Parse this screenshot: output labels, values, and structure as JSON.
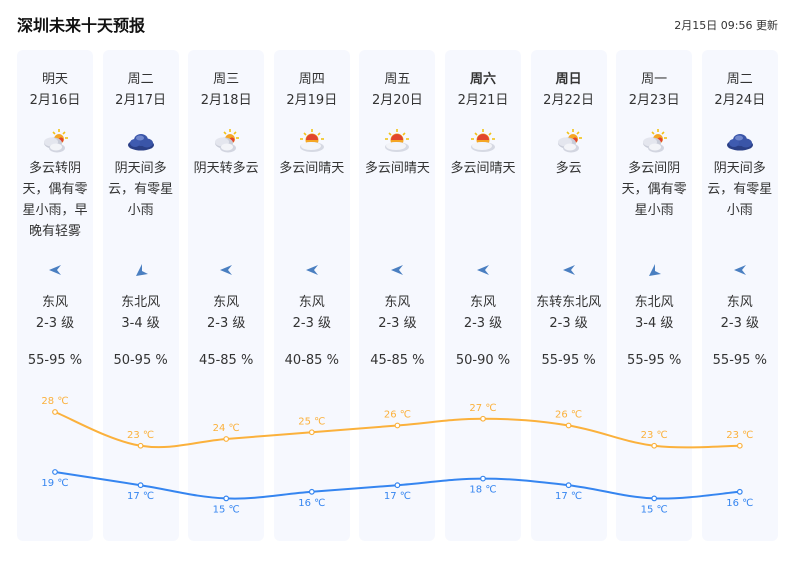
{
  "header": {
    "title": "深圳未来十天预报",
    "updated": "2月15日 09:56 更新"
  },
  "days": [
    {
      "week": "明天",
      "date": "2月16日",
      "icon": "partly-cloudy-icon",
      "desc": "多云转阴天，偶有零星小雨，早晚有轻雾",
      "wind_dir_icon": "wind-east-arrow-icon",
      "wind": "东风",
      "level": "2-3 级",
      "humidity": "55-95 %",
      "bold": false
    },
    {
      "week": "周二",
      "date": "2月17日",
      "icon": "overcast-cloud-icon",
      "desc": "阴天间多云，有零星小雨",
      "wind_dir_icon": "wind-northeast-arrow-icon",
      "wind": "东北风",
      "level": "3-4 级",
      "humidity": "50-95 %",
      "bold": false
    },
    {
      "week": "周三",
      "date": "2月18日",
      "icon": "partly-cloudy-icon",
      "desc": "阴天转多云",
      "wind_dir_icon": "wind-east-arrow-icon",
      "wind": "东风",
      "level": "2-3 级",
      "humidity": "45-85 %",
      "bold": false
    },
    {
      "week": "周四",
      "date": "2月19日",
      "icon": "sun-behind-cloud-icon",
      "desc": "多云间晴天",
      "wind_dir_icon": "wind-east-arrow-icon",
      "wind": "东风",
      "level": "2-3 级",
      "humidity": "40-85 %",
      "bold": false
    },
    {
      "week": "周五",
      "date": "2月20日",
      "icon": "sun-behind-cloud-icon",
      "desc": "多云间晴天",
      "wind_dir_icon": "wind-east-arrow-icon",
      "wind": "东风",
      "level": "2-3 级",
      "humidity": "45-85 %",
      "bold": false
    },
    {
      "week": "周六",
      "date": "2月21日",
      "icon": "sun-behind-cloud-icon",
      "desc": "多云间晴天",
      "wind_dir_icon": "wind-east-arrow-icon",
      "wind": "东风",
      "level": "2-3 级",
      "humidity": "50-90 %",
      "bold": true
    },
    {
      "week": "周日",
      "date": "2月22日",
      "icon": "partly-cloudy-icon",
      "desc": "多云",
      "wind_dir_icon": "wind-east-arrow-icon",
      "wind": "东转东北风",
      "level": "2-3 级",
      "humidity": "55-95 %",
      "bold": true
    },
    {
      "week": "周一",
      "date": "2月23日",
      "icon": "partly-cloudy-icon",
      "desc": "多云间阴天，偶有零星小雨",
      "wind_dir_icon": "wind-northeast-arrow-icon",
      "wind": "东北风",
      "level": "3-4 级",
      "humidity": "55-95 %",
      "bold": false
    },
    {
      "week": "周二",
      "date": "2月24日",
      "icon": "overcast-cloud-icon",
      "desc": "阴天间多云，有零星小雨",
      "wind_dir_icon": "wind-east-arrow-icon",
      "wind": "东风",
      "level": "2-3 级",
      "humidity": "55-95 %",
      "bold": false
    }
  ],
  "temperature": {
    "unit": "℃",
    "high_color": "#fbb13c",
    "low_color": "#3585f0",
    "high": [
      28,
      23,
      24,
      25,
      26,
      27,
      26,
      23,
      23
    ],
    "low": [
      19,
      17,
      15,
      16,
      17,
      18,
      17,
      15,
      16
    ]
  },
  "colors": {
    "card_bg": "#f6f8fe",
    "wind_arrow": "#4a7fc1"
  }
}
